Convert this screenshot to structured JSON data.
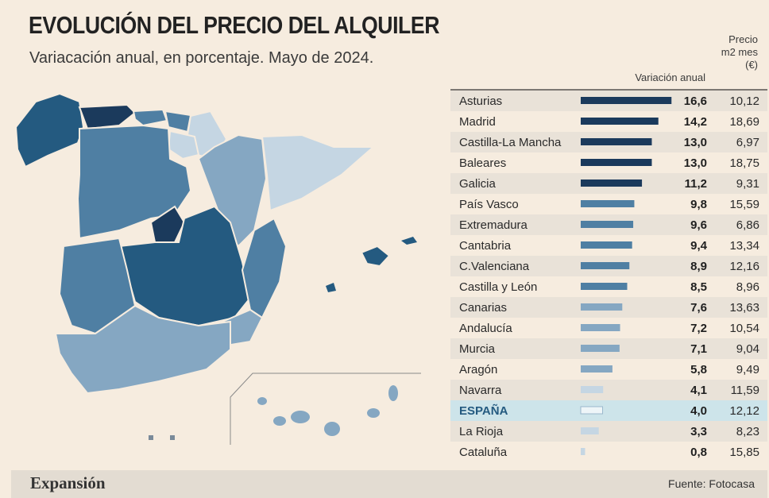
{
  "chart_data": {
    "type": "bar",
    "orientation": "horizontal",
    "title": "EVOLUCIÓN DEL PRECIO DEL ALQUILER",
    "subtitle": "Variacación anual, en porcentaje. Mayo de 2024.",
    "value_header": "Variación anual",
    "price_header": [
      "Precio",
      "m2 mes",
      "(€)"
    ],
    "categories": [
      "Asturias",
      "Madrid",
      "Castilla-La Mancha",
      "Baleares",
      "Galicia",
      "País Vasco",
      "Extremadura",
      "Cantabria",
      "C.Valenciana",
      "Castilla y León",
      "Canarias",
      "Andalucía",
      "Murcia",
      "Aragón",
      "Navarra",
      "ESPAÑA",
      "La Rioja",
      "Cataluña"
    ],
    "value_labels": [
      "16,6",
      "14,2",
      "13,0",
      "13,0",
      "11,2",
      "9,8",
      "9,6",
      "9,4",
      "8,9",
      "8,5",
      "7,6",
      "7,2",
      "7,1",
      "5,8",
      "4,1",
      "4,0",
      "3,3",
      "0,8"
    ],
    "values": [
      16.6,
      14.2,
      13.0,
      13.0,
      11.2,
      9.8,
      9.6,
      9.4,
      8.9,
      8.5,
      7.6,
      7.2,
      7.1,
      5.8,
      4.1,
      4.0,
      3.3,
      0.8
    ],
    "price_labels": [
      "10,12",
      "18,69",
      "6,97",
      "18,75",
      "9,31",
      "15,59",
      "6,86",
      "13,34",
      "12,16",
      "8,96",
      "13,63",
      "10,54",
      "9,04",
      "9,49",
      "11,59",
      "12,12",
      "8,23",
      "15,85"
    ],
    "xlim": [
      0,
      17
    ],
    "highlight": "ESPAÑA"
  },
  "footer": {
    "brand": "Expansión",
    "source": "Fuente: Fotocasa"
  },
  "colors": {
    "dark": "#1b3a5c",
    "mid_dark": "#245a80",
    "mid": "#4f7fa3",
    "light": "#85a7c2",
    "lighter": "#c5d6e3",
    "highlight_row": "#cde4ea"
  }
}
